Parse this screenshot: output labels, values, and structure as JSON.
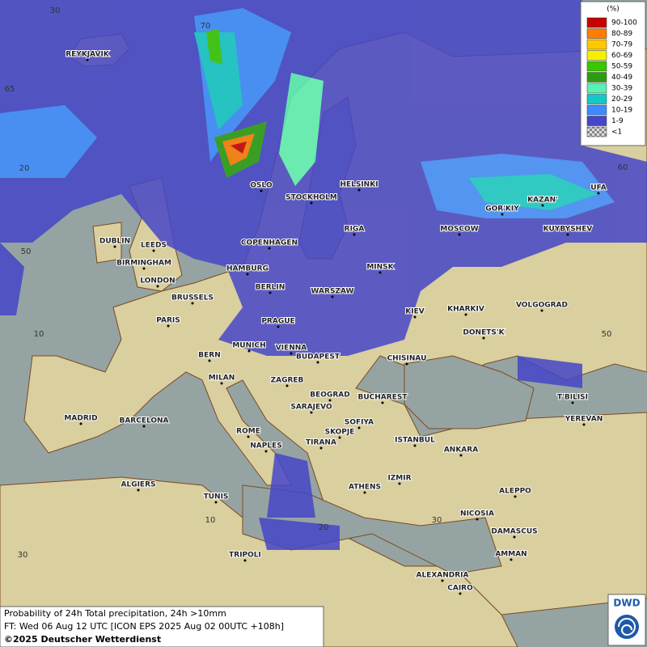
{
  "legend": {
    "title": "(%)",
    "items": [
      {
        "label": "90-100",
        "color": "#c80000"
      },
      {
        "label": "80-89",
        "color": "#ff7d00"
      },
      {
        "label": "70-79",
        "color": "#ffc800"
      },
      {
        "label": "60-69",
        "color": "#f5f000"
      },
      {
        "label": "50-59",
        "color": "#38c800"
      },
      {
        "label": "40-49",
        "color": "#2a9e10"
      },
      {
        "label": "30-39",
        "color": "#5af0b4"
      },
      {
        "label": "20-29",
        "color": "#14c8c8"
      },
      {
        "label": "10-19",
        "color": "#3c8cff"
      },
      {
        "label": "1-9",
        "color": "#4646c8"
      },
      {
        "label": "<1",
        "color": "#b4b4b4"
      }
    ]
  },
  "cities": [
    "REYKJAVIK",
    "OSLO",
    "STOCKHOLM",
    "HELSINKI",
    "DUBLIN",
    "LEEDS",
    "BIRMINGHAM",
    "LONDON",
    "COPENHAGEN",
    "RIGA",
    "HAMBURG",
    "BERLIN",
    "MINSK",
    "WARSZAW",
    "BRUSSELS",
    "PARIS",
    "PRAGUE",
    "KIEV",
    "KHARKIV",
    "VOLGOGRAD",
    "MOSCOW",
    "GOR'KIY",
    "KAZAN'",
    "UFA",
    "KUYBYSHEV",
    "DONETS'K",
    "BERN",
    "MUNICH",
    "VIENNA",
    "BUDAPEST",
    "CHISINAU",
    "MILAN",
    "ZAGREB",
    "BEOGRAD",
    "BUCHAREST",
    "T'BILISI",
    "YEREVAN",
    "MADRID",
    "BARCELONA",
    "SARAJEVO",
    "SOFIYA",
    "ROME",
    "SKOPJE",
    "ISTANBUL",
    "ANKARA",
    "NAPLES",
    "TIRANA",
    "IZMIR",
    "ALGIERS",
    "ATHENS",
    "ALEPPO",
    "TUNIS",
    "NICOSIA",
    "DAMASCUS",
    "TRIPOLI",
    "AMMAN",
    "ALEXANDRIA",
    "CAIRO"
  ],
  "graticule_labels": [
    30,
    70,
    65,
    20,
    50,
    10,
    30,
    10,
    20,
    30,
    50,
    60
  ],
  "footer": {
    "line1": "Probability of 24h Total precipitation, 24h >10mm",
    "line2": "FT: Wed 06 Aug 12 UTC [ICON EPS 2025 Aug 02 00UTC +108h]",
    "line3": "©2025 Deutscher Wetterdienst"
  },
  "logo": "DWD"
}
